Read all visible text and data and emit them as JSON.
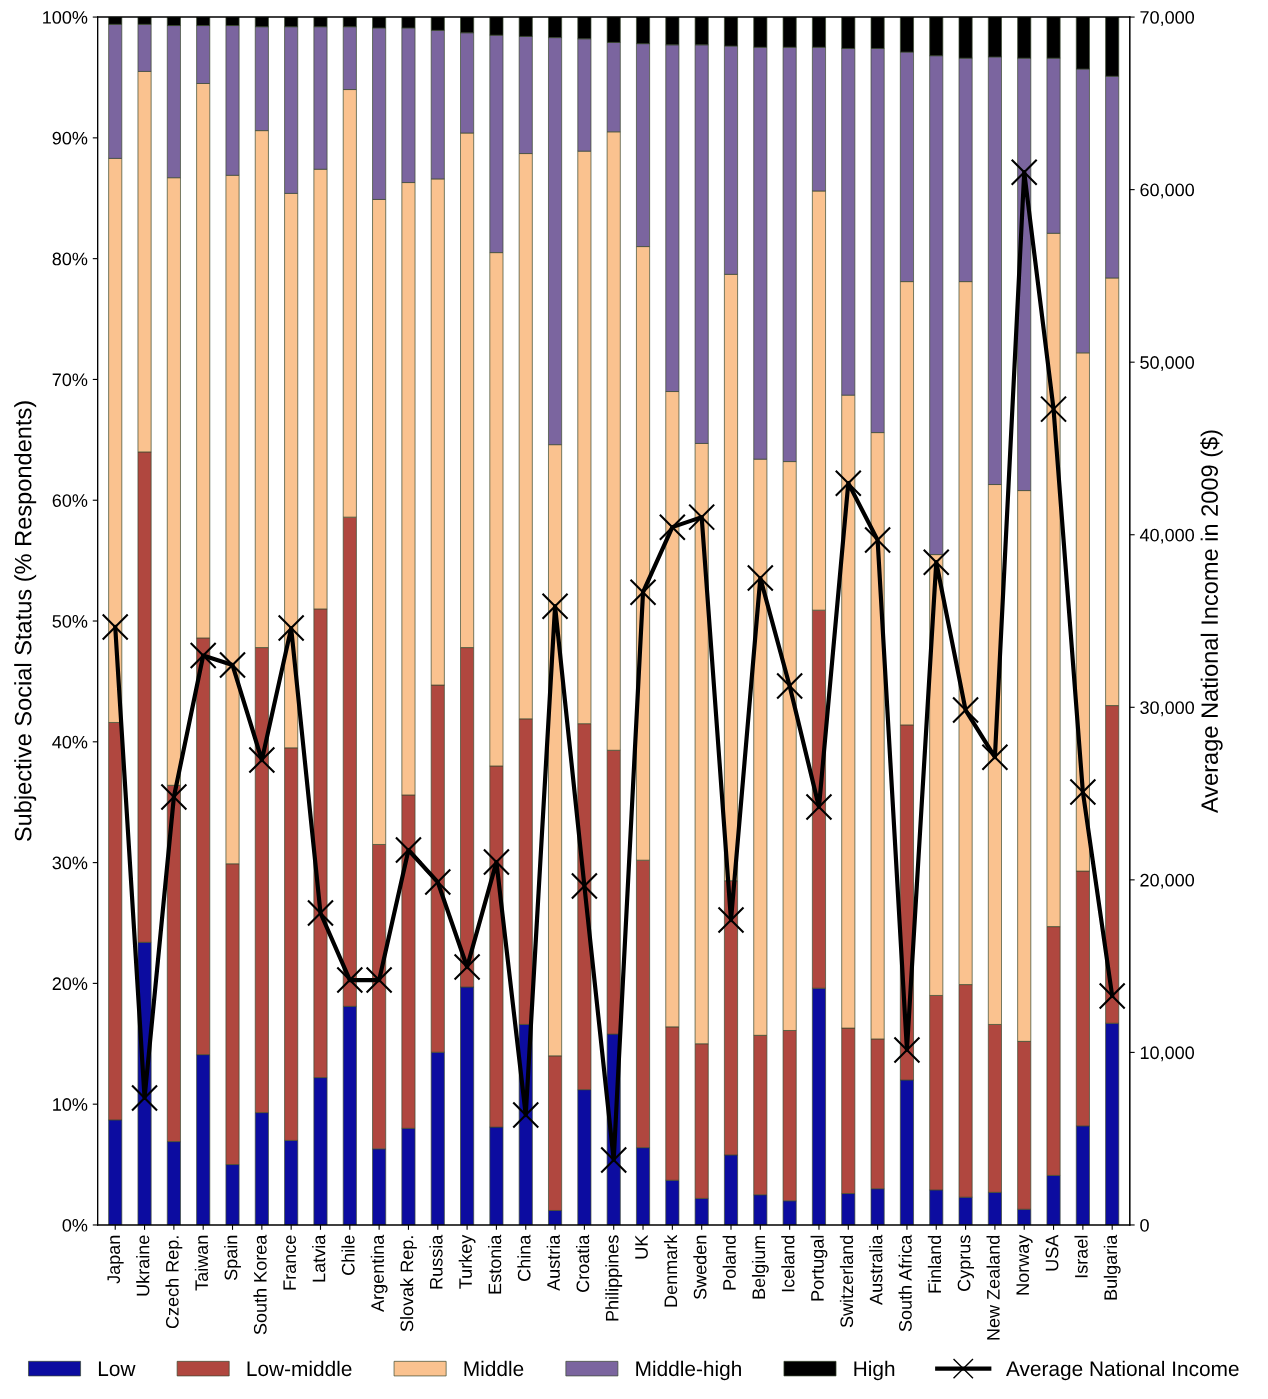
{
  "chart_data": {
    "type": "bar",
    "stacked": true,
    "ylabel": "Subjective Social Status (% Respondents)",
    "y2label": "Average National Income in 2009 ($)",
    "categories": [
      "Japan",
      "Ukraine",
      "Czech Rep.",
      "Taiwan",
      "Spain",
      "South Korea",
      "France",
      "Latvia",
      "Chile",
      "Argentina",
      "Slovak Rep.",
      "Russia",
      "Turkey",
      "Estonia",
      "China",
      "Austria",
      "Croatia",
      "Philippines",
      "UK",
      "Denmark",
      "Sweden",
      "Poland",
      "Belgium",
      "Iceland",
      "Portugal",
      "Switzerland",
      "Australia",
      "South Africa",
      "Finland",
      "Cyprus",
      "New Zealand",
      "Norway",
      "USA",
      "Israel",
      "Bulgaria"
    ],
    "series": [
      {
        "name": "Low",
        "color": "#0c0ca0",
        "values": [
          8.7,
          23.4,
          6.9,
          14.1,
          5.0,
          9.3,
          7.0,
          12.2,
          18.1,
          6.3,
          8.0,
          14.3,
          19.7,
          8.1,
          16.6,
          1.2,
          11.2,
          15.8,
          6.4,
          3.7,
          2.2,
          5.8,
          2.5,
          2.0,
          19.6,
          2.6,
          3.0,
          12.0,
          2.9,
          2.3,
          2.7,
          1.3,
          4.1,
          8.2,
          16.7
        ]
      },
      {
        "name": "Low-middle",
        "color": "#b0473f",
        "values": [
          32.9,
          40.6,
          29.5,
          34.5,
          24.9,
          38.5,
          32.5,
          38.8,
          40.5,
          25.2,
          27.6,
          30.4,
          28.1,
          29.9,
          25.3,
          12.8,
          30.3,
          23.5,
          23.8,
          12.7,
          12.8,
          22.7,
          13.2,
          14.1,
          31.3,
          13.7,
          12.4,
          29.4,
          16.1,
          17.6,
          13.9,
          13.9,
          20.6,
          21.1,
          26.3
        ]
      },
      {
        "name": "Middle",
        "color": "#fac28f",
        "values": [
          46.7,
          31.5,
          50.3,
          45.9,
          57.0,
          42.8,
          45.9,
          36.4,
          35.4,
          53.4,
          50.7,
          41.9,
          42.6,
          42.5,
          46.8,
          50.6,
          47.4,
          51.2,
          50.8,
          52.6,
          49.7,
          50.2,
          47.7,
          47.1,
          34.7,
          52.4,
          50.2,
          36.7,
          36.5,
          58.2,
          44.7,
          45.6,
          57.4,
          42.9,
          35.4
        ]
      },
      {
        "name": "Middle-high",
        "color": "#7b659f",
        "values": [
          11.1,
          3.9,
          12.6,
          4.8,
          12.4,
          8.6,
          13.8,
          11.8,
          5.2,
          14.2,
          12.8,
          12.3,
          8.3,
          18.0,
          9.7,
          33.7,
          9.3,
          7.4,
          16.8,
          28.7,
          33.0,
          18.9,
          34.1,
          34.3,
          11.9,
          28.7,
          31.8,
          19.0,
          41.3,
          18.5,
          35.4,
          35.8,
          14.5,
          23.5,
          16.7
        ]
      },
      {
        "name": "High",
        "color": "#000000",
        "values": [
          0.6,
          0.6,
          0.7,
          0.7,
          0.7,
          0.8,
          0.8,
          0.8,
          0.8,
          0.9,
          0.9,
          1.1,
          1.3,
          1.5,
          1.6,
          1.7,
          1.8,
          2.1,
          2.2,
          2.3,
          2.3,
          2.4,
          2.5,
          2.5,
          2.5,
          2.6,
          2.6,
          2.9,
          3.2,
          3.4,
          3.3,
          3.4,
          3.4,
          4.3,
          4.9
        ]
      },
      {
        "name": "Average National Income",
        "type": "line",
        "axis": "y2",
        "color": "#000000",
        "marker": "cross",
        "values": [
          34650,
          7360,
          24800,
          33000,
          32450,
          26940,
          34590,
          18080,
          14190,
          14190,
          21730,
          19870,
          14950,
          21030,
          6370,
          35860,
          19640,
          3770,
          36670,
          40440,
          41020,
          17670,
          37490,
          31230,
          24220,
          42990,
          39690,
          10140,
          38410,
          29840,
          27110,
          61010,
          47280,
          25090,
          13270
        ]
      }
    ],
    "ylim": [
      0,
      100
    ],
    "yticks": [
      {
        "value": 0,
        "label": "0%"
      },
      {
        "value": 10,
        "label": "10%"
      },
      {
        "value": 20,
        "label": "20%"
      },
      {
        "value": 30,
        "label": "30%"
      },
      {
        "value": 40,
        "label": "40%"
      },
      {
        "value": 50,
        "label": "50%"
      },
      {
        "value": 60,
        "label": "60%"
      },
      {
        "value": 70,
        "label": "70%"
      },
      {
        "value": 80,
        "label": "80%"
      },
      {
        "value": 90,
        "label": "90%"
      },
      {
        "value": 100,
        "label": "100%"
      }
    ],
    "y2lim": [
      0,
      70000
    ],
    "y2ticks": [
      0,
      {
        "value": 10000,
        "label": "10,000"
      },
      {
        "value": 20000,
        "label": "20,000"
      },
      {
        "value": 30000,
        "label": "30,000"
      },
      {
        "value": 40000,
        "label": "40,000"
      },
      {
        "value": 50000,
        "label": "50,000"
      },
      {
        "value": 60000,
        "label": "60,000"
      },
      {
        "value": 70000,
        "label": "70,000"
      }
    ],
    "grid": false,
    "legend": "bottom"
  }
}
